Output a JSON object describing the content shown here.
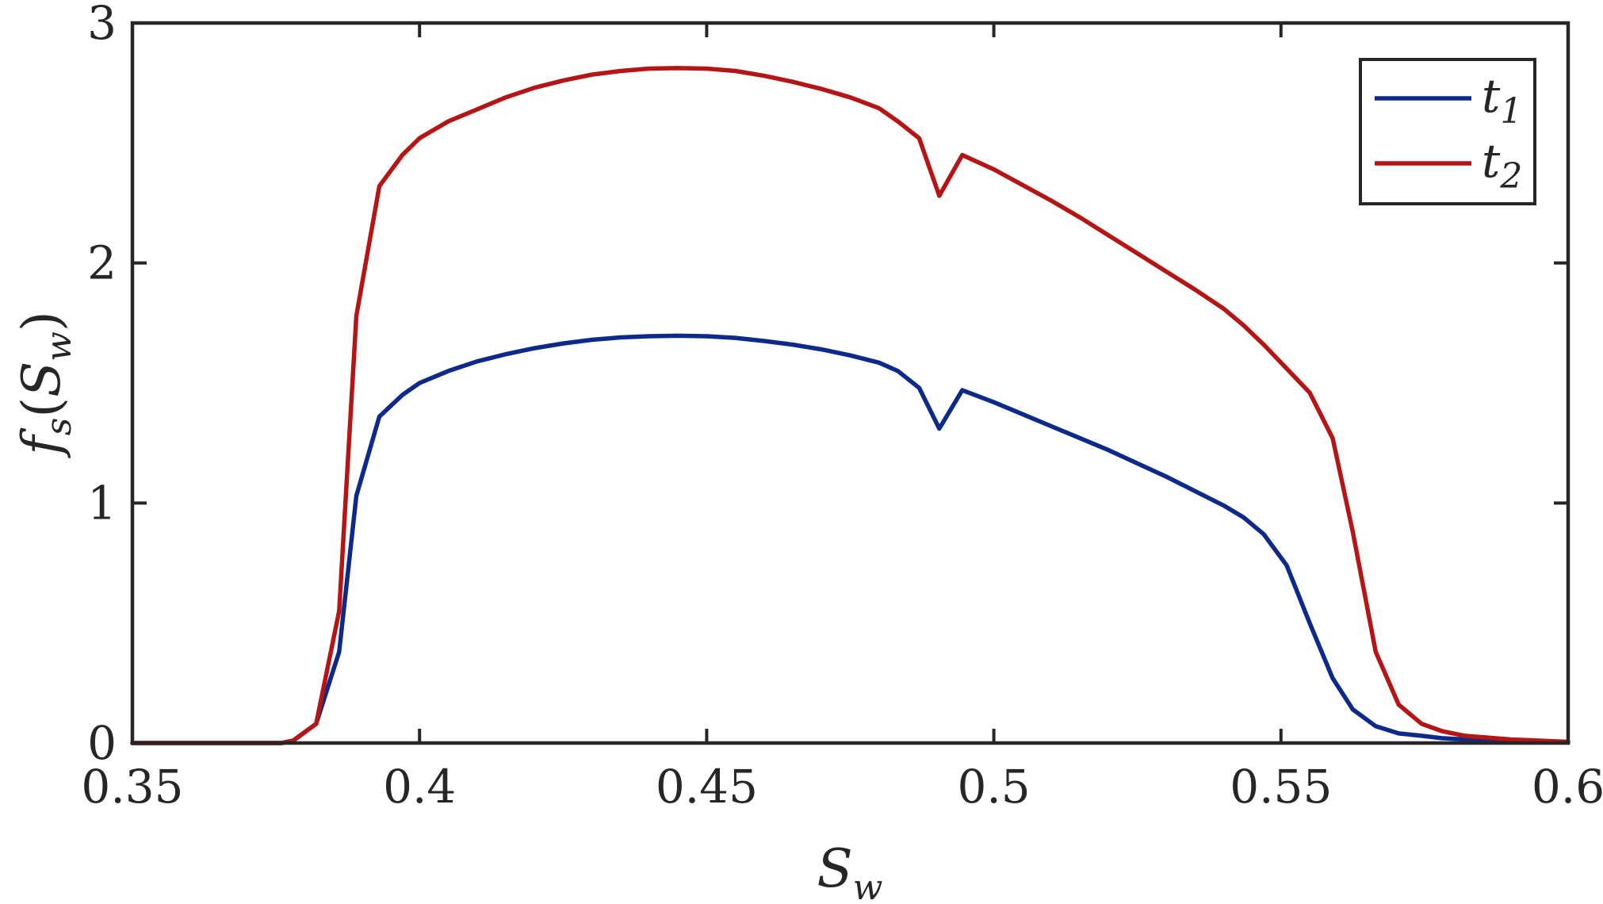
{
  "chart_data": {
    "type": "line",
    "title": "",
    "xlabel": {
      "main": "S",
      "sub": "w"
    },
    "ylabel": {
      "func": "f",
      "func_sub": "s",
      "open": "(",
      "arg": "S",
      "arg_sub": "w",
      "close": ")"
    },
    "xlim": [
      0.35,
      0.6
    ],
    "ylim": [
      0,
      3
    ],
    "xticks": [
      0.35,
      0.4,
      0.45,
      0.5,
      0.55,
      0.6
    ],
    "xtick_labels": [
      "0.35",
      "0.4",
      "0.45",
      "0.5",
      "0.55",
      "0.6"
    ],
    "yticks": [
      0,
      1,
      2,
      3
    ],
    "ytick_labels": [
      "0",
      "1",
      "2",
      "3"
    ],
    "grid": false,
    "legend_position": "top-right",
    "series": [
      {
        "name": {
          "main": "t",
          "sub": "1"
        },
        "color": "#0d2a8a",
        "x": [
          0.35,
          0.36,
          0.37,
          0.376,
          0.378,
          0.382,
          0.386,
          0.389,
          0.393,
          0.397,
          0.4,
          0.405,
          0.41,
          0.415,
          0.42,
          0.425,
          0.43,
          0.435,
          0.44,
          0.445,
          0.45,
          0.455,
          0.46,
          0.465,
          0.47,
          0.475,
          0.48,
          0.4833,
          0.487,
          0.4905,
          0.4945,
          0.5,
          0.505,
          0.51,
          0.515,
          0.52,
          0.525,
          0.53,
          0.535,
          0.54,
          0.5435,
          0.547,
          0.551,
          0.555,
          0.559,
          0.5625,
          0.5665,
          0.5705,
          0.5745,
          0.578,
          0.582,
          0.59,
          0.6
        ],
        "y": [
          0,
          0,
          0,
          0,
          0.01,
          0.08,
          0.38,
          1.03,
          1.36,
          1.45,
          1.5,
          1.55,
          1.59,
          1.62,
          1.645,
          1.665,
          1.68,
          1.69,
          1.695,
          1.697,
          1.695,
          1.688,
          1.675,
          1.66,
          1.64,
          1.615,
          1.585,
          1.55,
          1.48,
          1.31,
          1.47,
          1.42,
          1.37,
          1.32,
          1.27,
          1.22,
          1.165,
          1.11,
          1.05,
          0.99,
          0.94,
          0.87,
          0.74,
          0.5,
          0.27,
          0.14,
          0.07,
          0.04,
          0.03,
          0.02,
          0.015,
          0.008,
          0.004
        ]
      },
      {
        "name": {
          "main": "t",
          "sub": "2"
        },
        "color": "#b51515",
        "x": [
          0.35,
          0.36,
          0.37,
          0.376,
          0.378,
          0.382,
          0.386,
          0.389,
          0.393,
          0.397,
          0.4,
          0.405,
          0.41,
          0.415,
          0.42,
          0.425,
          0.43,
          0.435,
          0.44,
          0.445,
          0.45,
          0.455,
          0.46,
          0.465,
          0.47,
          0.475,
          0.48,
          0.4833,
          0.487,
          0.4905,
          0.4945,
          0.5,
          0.505,
          0.51,
          0.515,
          0.52,
          0.525,
          0.53,
          0.535,
          0.54,
          0.5435,
          0.547,
          0.551,
          0.555,
          0.559,
          0.5625,
          0.5665,
          0.5705,
          0.5745,
          0.578,
          0.582,
          0.59,
          0.6
        ],
        "y": [
          0,
          0,
          0,
          0,
          0.01,
          0.08,
          0.55,
          1.78,
          2.32,
          2.45,
          2.52,
          2.59,
          2.64,
          2.69,
          2.73,
          2.76,
          2.785,
          2.8,
          2.81,
          2.812,
          2.81,
          2.8,
          2.78,
          2.755,
          2.725,
          2.69,
          2.645,
          2.59,
          2.52,
          2.28,
          2.45,
          2.39,
          2.325,
          2.26,
          2.19,
          2.115,
          2.04,
          1.965,
          1.89,
          1.81,
          1.74,
          1.66,
          1.56,
          1.46,
          1.27,
          0.88,
          0.38,
          0.16,
          0.08,
          0.05,
          0.03,
          0.015,
          0.005
        ]
      }
    ]
  }
}
